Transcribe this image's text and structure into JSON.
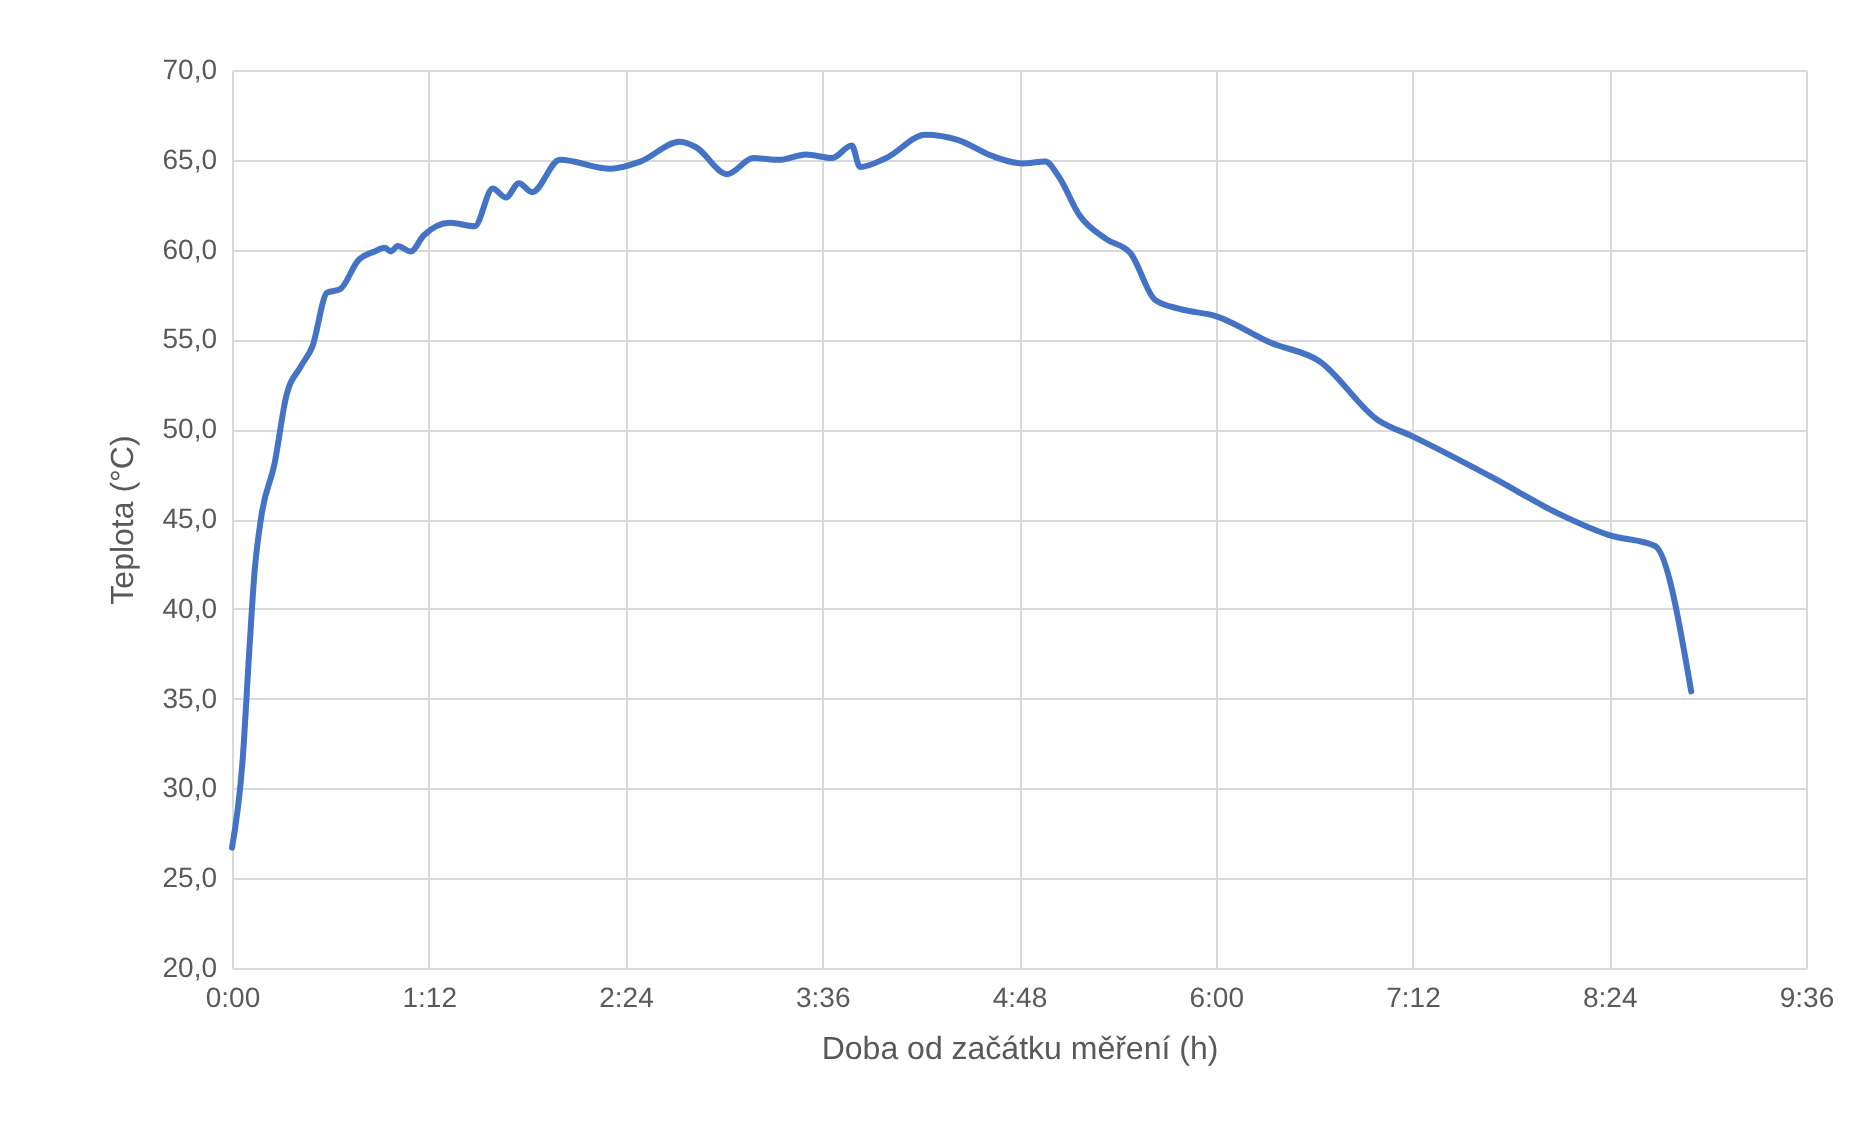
{
  "chart_data": {
    "type": "line",
    "xlabel": "Doba od začátku měření (h)",
    "ylabel": "Teplota (°C)",
    "xlim": [
      0,
      9.6
    ],
    "xticks": [
      {
        "value": 0,
        "label": "0:00"
      },
      {
        "value": 1.2,
        "label": "1:12"
      },
      {
        "value": 2.4,
        "label": "2:24"
      },
      {
        "value": 3.6,
        "label": "3:36"
      },
      {
        "value": 4.8,
        "label": "4:48"
      },
      {
        "value": 6,
        "label": "6:00"
      },
      {
        "value": 7.2,
        "label": "7:12"
      },
      {
        "value": 8.4,
        "label": "8:24"
      },
      {
        "value": 9.6,
        "label": "9:36"
      }
    ],
    "ylim": [
      20,
      70
    ],
    "yticks": [
      {
        "value": 20,
        "label": "20,0"
      },
      {
        "value": 25,
        "label": "25,0"
      },
      {
        "value": 30,
        "label": "30,0"
      },
      {
        "value": 35,
        "label": "35,0"
      },
      {
        "value": 40,
        "label": "40,0"
      },
      {
        "value": 45,
        "label": "45,0"
      },
      {
        "value": 50,
        "label": "50,0"
      },
      {
        "value": 55,
        "label": "55,0"
      },
      {
        "value": 60,
        "label": "60,0"
      },
      {
        "value": 65,
        "label": "65,0"
      },
      {
        "value": 70,
        "label": "70,0"
      }
    ],
    "grid": true,
    "marker": "none",
    "line_style": "solid",
    "x": [
      0,
      0.065,
      0.105,
      0.138,
      0.178,
      0.26,
      0.33,
      0.42,
      0.49,
      0.58,
      0.66,
      0.77,
      0.87,
      0.93,
      0.97,
      1.01,
      1.09,
      1.17,
      1.33,
      1.48,
      1.59,
      1.67,
      1.75,
      1.83,
      2.0,
      2.31,
      2.49,
      2.73,
      2.83,
      3.02,
      3.18,
      3.34,
      3.5,
      3.66,
      3.78,
      3.83,
      3.99,
      4.23,
      4.43,
      4.64,
      4.82,
      4.96,
      5.04,
      5.17,
      5.33,
      5.48,
      5.63,
      5.78,
      6.0,
      6.34,
      6.63,
      6.99,
      7.2,
      7.69,
      8.09,
      8.4,
      8.68,
      8.9
    ],
    "series": [
      {
        "color": "#4472c4",
        "values": [
          26.7,
          31.6,
          37.6,
          42.1,
          45.1,
          48.1,
          51.8,
          53.5,
          54.6,
          57.6,
          57.8,
          59.4,
          59.9,
          60.1,
          59.9,
          60.2,
          59.9,
          60.8,
          61.5,
          61.3,
          63.4,
          62.9,
          63.7,
          63.2,
          65.0,
          64.5,
          64.9,
          66.0,
          65.7,
          64.2,
          65.1,
          65.0,
          65.3,
          65.1,
          65.8,
          64.6,
          65.1,
          66.4,
          66.1,
          65.2,
          64.8,
          64.9,
          64.1,
          61.9,
          60.6,
          59.8,
          57.2,
          56.7,
          56.3,
          54.8,
          53.8,
          50.5,
          49.6,
          47.3,
          45.3,
          44.1,
          43.5,
          35.4
        ]
      }
    ]
  }
}
